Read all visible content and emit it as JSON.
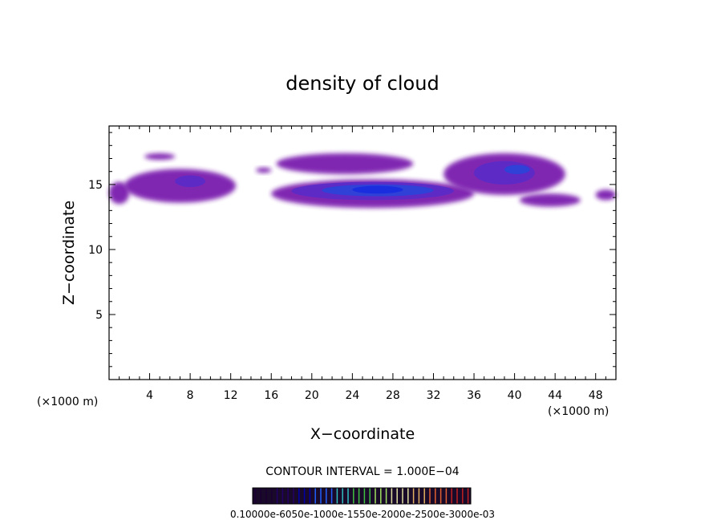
{
  "chart_data": {
    "type": "heatmap",
    "title": "density of cloud",
    "xlabel": "X−coordinate",
    "ylabel": "Z−coordinate",
    "x_unit_left": "(×1000 m)",
    "x_unit_right": "(×1000 m)",
    "xlim": [
      0,
      50
    ],
    "ylim": [
      0,
      19.5
    ],
    "x_ticks": [
      4,
      8,
      12,
      16,
      20,
      24,
      28,
      32,
      36,
      40,
      44,
      48
    ],
    "y_ticks": [
      5,
      10,
      15
    ],
    "contour_interval_text": "CONTOUR INTERVAL = 1.000E−04",
    "colorbar_labels_text": "0.10000e-6050e-1000e-1550e-2000e-2500e-3000e-03",
    "colorbar_colors": [
      "#1a0033",
      "#220066",
      "#0000aa",
      "#2060ff",
      "#30c0c0",
      "#40c040",
      "#a0e060",
      "#e0e0a0",
      "#e0b060",
      "#e06030",
      "#c02020"
    ],
    "colorbar_levels": 40,
    "cloud_color_scale": {
      "outer": "#7a1fae",
      "mid": "#5a2bc8",
      "core": "#2a44d8",
      "peak": "#1a2ce0"
    },
    "cloud_regions": [
      {
        "x": [
          0,
          2
        ],
        "z": [
          13.5,
          15.2
        ],
        "level": "outer"
      },
      {
        "x": [
          1.5,
          12.5
        ],
        "z": [
          13.6,
          16.2
        ],
        "level": "outer"
      },
      {
        "x": [
          6.5,
          9.5
        ],
        "z": [
          14.8,
          15.7
        ],
        "level": "mid"
      },
      {
        "x": [
          3.5,
          6.5
        ],
        "z": [
          16.9,
          17.4
        ],
        "level": "outer"
      },
      {
        "x": [
          14.5,
          16
        ],
        "z": [
          15.9,
          16.3
        ],
        "level": "outer"
      },
      {
        "x": [
          16.5,
          30
        ],
        "z": [
          15.8,
          17.4
        ],
        "level": "outer"
      },
      {
        "x": [
          16,
          36
        ],
        "z": [
          13.2,
          15.4
        ],
        "level": "outer"
      },
      {
        "x": [
          18,
          34
        ],
        "z": [
          13.8,
          15.2
        ],
        "level": "mid"
      },
      {
        "x": [
          21,
          32
        ],
        "z": [
          14.1,
          15.0
        ],
        "level": "core"
      },
      {
        "x": [
          24,
          29
        ],
        "z": [
          14.3,
          14.9
        ],
        "level": "peak"
      },
      {
        "x": [
          33,
          45
        ],
        "z": [
          14.2,
          17.4
        ],
        "level": "outer"
      },
      {
        "x": [
          36,
          42
        ],
        "z": [
          15.0,
          16.8
        ],
        "level": "mid"
      },
      {
        "x": [
          39,
          41.5
        ],
        "z": [
          15.8,
          16.5
        ],
        "level": "core"
      },
      {
        "x": [
          40.5,
          46.5
        ],
        "z": [
          13.3,
          14.3
        ],
        "level": "outer"
      },
      {
        "x": [
          48,
          50
        ],
        "z": [
          13.8,
          14.6
        ],
        "level": "outer"
      }
    ]
  }
}
